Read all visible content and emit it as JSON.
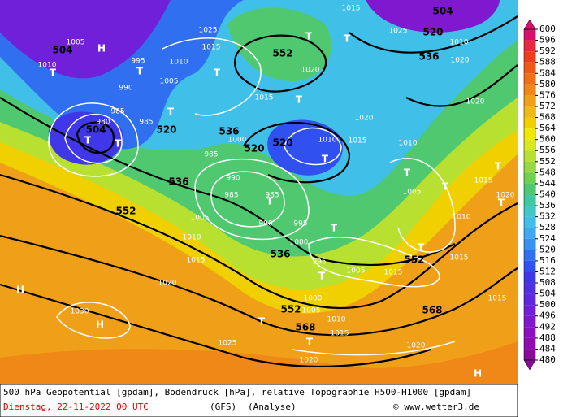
{
  "map": {
    "geopotential_labels": [
      "504",
      "520",
      "536",
      "552",
      "504",
      "520",
      "536",
      "520",
      "520",
      "536",
      "552",
      "536",
      "552",
      "552",
      "568",
      "568",
      "504"
    ],
    "pressure_labels": [
      "1005",
      "1010",
      "995",
      "990",
      "985",
      "985",
      "980",
      "1005",
      "1010",
      "1015",
      "1025",
      "1020",
      "1015",
      "1000",
      "985",
      "990",
      "985",
      "985",
      "990",
      "995",
      "1000",
      "1005",
      "1010",
      "1015",
      "1020",
      "1030",
      "1010",
      "1015",
      "1020",
      "1020",
      "1010",
      "1005",
      "1010",
      "1015",
      "1005",
      "1015",
      "995",
      "1000",
      "1005",
      "1010",
      "1015",
      "1020",
      "1020",
      "1025",
      "1015",
      "1020",
      "1015",
      "1015",
      "1025",
      "1010",
      "1020"
    ],
    "highs": [
      "H",
      "H",
      "H",
      "H"
    ],
    "lows": [
      "T",
      "T",
      "T",
      "T",
      "T",
      "T",
      "T",
      "T",
      "T",
      "T",
      "T",
      "T",
      "T",
      "T",
      "T",
      "T",
      "T",
      "T",
      "T",
      "T"
    ]
  },
  "colorbar": {
    "levels": [
      600,
      596,
      592,
      588,
      584,
      580,
      576,
      572,
      568,
      564,
      560,
      556,
      552,
      548,
      544,
      540,
      536,
      532,
      528,
      524,
      520,
      516,
      512,
      508,
      504,
      500,
      496,
      492,
      488,
      484,
      480
    ],
    "colors": [
      "#d8106c",
      "#e8283c",
      "#f03c1c",
      "#f05818",
      "#f07018",
      "#f08818",
      "#f0a018",
      "#f0b818",
      "#f0d000",
      "#f0e800",
      "#d8e820",
      "#b8e030",
      "#98d840",
      "#70d050",
      "#50c870",
      "#40c8a0",
      "#40c8c8",
      "#40c0e8",
      "#40a8f0",
      "#3890f0",
      "#3070f0",
      "#3050f0",
      "#4038e8",
      "#5030e0",
      "#6028e0",
      "#7020d8",
      "#8018d0",
      "#8c10c0",
      "#900cb0",
      "#880c98"
    ]
  },
  "footer": {
    "description": "500 hPa Geopotential [gpdam], Bodendruck [hPa], relative Topographie H500-H1000 [gpdam]",
    "date": "Dienstag, 22-11-2022  00 UTC",
    "model": "(GFS)",
    "analysis": "(Analyse)",
    "source": "© www.wetter3.de"
  }
}
